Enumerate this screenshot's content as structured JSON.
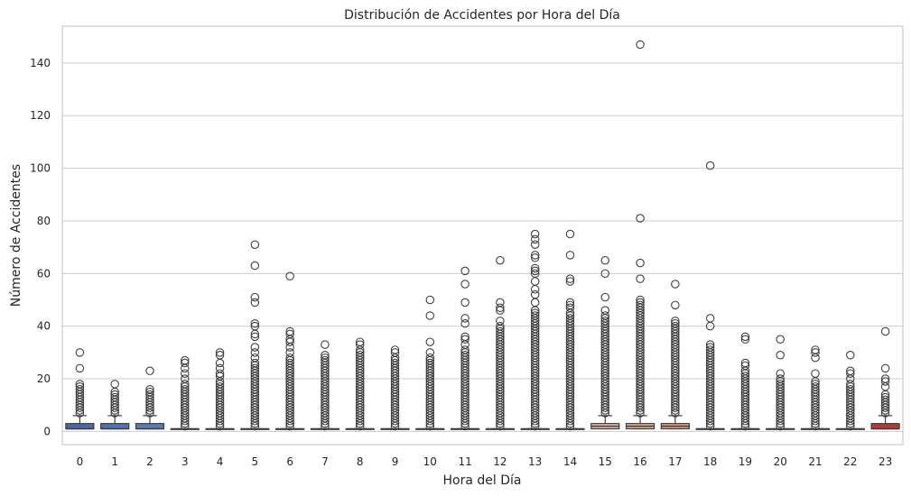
{
  "chart_data": {
    "type": "box",
    "title": "Distribución de Accidentes por Hora del Día",
    "xlabel": "Hora del Día",
    "ylabel": "Número de Accidentes",
    "ylim": [
      -5,
      154
    ],
    "yticks": [
      0,
      20,
      40,
      60,
      80,
      100,
      120,
      140
    ],
    "grid": "horizontal",
    "categories": [
      "0",
      "1",
      "2",
      "3",
      "4",
      "5",
      "6",
      "7",
      "8",
      "9",
      "10",
      "11",
      "12",
      "13",
      "14",
      "15",
      "16",
      "17",
      "18",
      "19",
      "20",
      "21",
      "22",
      "23"
    ],
    "boxes": [
      {
        "q1": 1,
        "median": 1,
        "q3": 3,
        "whisker_low": 1,
        "whisker_high": 6,
        "color": "#4a69a8"
      },
      {
        "q1": 1,
        "median": 1,
        "q3": 3,
        "whisker_low": 1,
        "whisker_high": 6,
        "color": "#5173ae"
      },
      {
        "q1": 1,
        "median": 1,
        "q3": 3,
        "whisker_low": 1,
        "whisker_high": 6,
        "color": "#5b7db5"
      },
      {
        "q1": 1,
        "median": 1,
        "q3": 1,
        "whisker_low": 1,
        "whisker_high": 1,
        "color": "#6788bb"
      },
      {
        "q1": 1,
        "median": 1,
        "q3": 1,
        "whisker_low": 1,
        "whisker_high": 1,
        "color": "#7593c2"
      },
      {
        "q1": 1,
        "median": 1,
        "q3": 1,
        "whisker_low": 1,
        "whisker_high": 1,
        "color": "#839ec8"
      },
      {
        "q1": 1,
        "median": 1,
        "q3": 1,
        "whisker_low": 1,
        "whisker_high": 1,
        "color": "#92aacd"
      },
      {
        "q1": 1,
        "median": 1,
        "q3": 1,
        "whisker_low": 1,
        "whisker_high": 1,
        "color": "#a2b5d2"
      },
      {
        "q1": 1,
        "median": 1,
        "q3": 1,
        "whisker_low": 1,
        "whisker_high": 1,
        "color": "#b1c0d6"
      },
      {
        "q1": 1,
        "median": 1,
        "q3": 1,
        "whisker_low": 1,
        "whisker_high": 1,
        "color": "#c0cbd9"
      },
      {
        "q1": 1,
        "median": 1,
        "q3": 1,
        "whisker_low": 1,
        "whisker_high": 1,
        "color": "#ced5dc"
      },
      {
        "q1": 1,
        "median": 1,
        "q3": 1,
        "whisker_low": 1,
        "whisker_high": 1,
        "color": "#dbdcdd"
      },
      {
        "q1": 1,
        "median": 1,
        "q3": 1,
        "whisker_low": 1,
        "whisker_high": 1,
        "color": "#e2d9d4"
      },
      {
        "q1": 1,
        "median": 1,
        "q3": 1,
        "whisker_low": 1,
        "whisker_high": 1,
        "color": "#e6d1c7"
      },
      {
        "q1": 1,
        "median": 1,
        "q3": 1,
        "whisker_low": 1,
        "whisker_high": 1,
        "color": "#e8c8b8"
      },
      {
        "q1": 1,
        "median": 2,
        "q3": 3,
        "whisker_low": 1,
        "whisker_high": 6,
        "color": "#e9bea9"
      },
      {
        "q1": 1,
        "median": 2,
        "q3": 3,
        "whisker_low": 1,
        "whisker_high": 6,
        "color": "#e6b199"
      },
      {
        "q1": 1,
        "median": 2,
        "q3": 3,
        "whisker_low": 1,
        "whisker_high": 6,
        "color": "#e2a287"
      },
      {
        "q1": 1,
        "median": 1,
        "q3": 1,
        "whisker_low": 1,
        "whisker_high": 1,
        "color": "#dd9276"
      },
      {
        "q1": 1,
        "median": 1,
        "q3": 1,
        "whisker_low": 1,
        "whisker_high": 1,
        "color": "#d68265"
      },
      {
        "q1": 1,
        "median": 1,
        "q3": 1,
        "whisker_low": 1,
        "whisker_high": 1,
        "color": "#ce7156"
      },
      {
        "q1": 1,
        "median": 1,
        "q3": 1,
        "whisker_low": 1,
        "whisker_high": 1,
        "color": "#c35f48"
      },
      {
        "q1": 1,
        "median": 1,
        "q3": 1,
        "whisker_low": 1,
        "whisker_high": 1,
        "color": "#b84d3c"
      },
      {
        "q1": 1,
        "median": 1,
        "q3": 3,
        "whisker_low": 1,
        "whisker_high": 6,
        "color": "#b13c35"
      }
    ],
    "outliers": [
      [
        30,
        24,
        18,
        17,
        16,
        15,
        14,
        13,
        12,
        11,
        10,
        9,
        8,
        7
      ],
      [
        18,
        15,
        14,
        13,
        12,
        11,
        10,
        9,
        8,
        7
      ],
      [
        23,
        16,
        15,
        14,
        13,
        12,
        11,
        10,
        9,
        8,
        7
      ],
      [
        27,
        26,
        24,
        22,
        20,
        18,
        17,
        16,
        15,
        14,
        13,
        12,
        11,
        10,
        9,
        8,
        7,
        6,
        5,
        4,
        3,
        2
      ],
      [
        30,
        29,
        26,
        24,
        22,
        21,
        19,
        18,
        17,
        16,
        15,
        14,
        13,
        12,
        11,
        10,
        9,
        8,
        7,
        6,
        5,
        4,
        3,
        2
      ],
      [
        71,
        63,
        51,
        49,
        41,
        40,
        37,
        36,
        32,
        30,
        28,
        26,
        25,
        24,
        23,
        22,
        21,
        20,
        19,
        18,
        17,
        16,
        15,
        14,
        13,
        12,
        11,
        10,
        9,
        8,
        7,
        6,
        5,
        4,
        3,
        2
      ],
      [
        59,
        38,
        37,
        35,
        34,
        32,
        30,
        28,
        27,
        26,
        25,
        24,
        23,
        22,
        21,
        20,
        19,
        18,
        17,
        16,
        15,
        14,
        13,
        12,
        11,
        10,
        9,
        8,
        7,
        6,
        5,
        4,
        3,
        2
      ],
      [
        33,
        29,
        28,
        27,
        26,
        25,
        24,
        23,
        22,
        21,
        20,
        19,
        18,
        17,
        16,
        15,
        14,
        13,
        12,
        11,
        10,
        9,
        8,
        7,
        6,
        5,
        4,
        3,
        2
      ],
      [
        34,
        33,
        31,
        30,
        29,
        28,
        27,
        26,
        25,
        24,
        23,
        22,
        21,
        20,
        19,
        18,
        17,
        16,
        15,
        14,
        13,
        12,
        11,
        10,
        9,
        8,
        7,
        6,
        5,
        4,
        3,
        2
      ],
      [
        31,
        30,
        28,
        27,
        26,
        25,
        24,
        23,
        22,
        21,
        20,
        19,
        18,
        17,
        16,
        15,
        14,
        13,
        12,
        11,
        10,
        9,
        8,
        7,
        6,
        5,
        4,
        3,
        2
      ],
      [
        50,
        44,
        34,
        30,
        28,
        27,
        26,
        25,
        24,
        23,
        22,
        21,
        20,
        19,
        18,
        17,
        16,
        15,
        14,
        13,
        12,
        11,
        10,
        9,
        8,
        7,
        6,
        5,
        4,
        3,
        2
      ],
      [
        61,
        56,
        49,
        43,
        41,
        36,
        35,
        33,
        31,
        30,
        29,
        28,
        27,
        26,
        25,
        24,
        23,
        22,
        21,
        20,
        19,
        18,
        17,
        16,
        15,
        14,
        13,
        12,
        11,
        10,
        9,
        8,
        7,
        6,
        5,
        4,
        3,
        2
      ],
      [
        65,
        49,
        47,
        46,
        42,
        40,
        39,
        38,
        37,
        36,
        35,
        34,
        33,
        32,
        31,
        30,
        29,
        28,
        27,
        26,
        25,
        24,
        23,
        22,
        21,
        20,
        19,
        18,
        17,
        16,
        15,
        14,
        13,
        12,
        11,
        10,
        9,
        8,
        7,
        6,
        5,
        4,
        3,
        2
      ],
      [
        75,
        73,
        71,
        67,
        66,
        62,
        61,
        60,
        57,
        54,
        52,
        49,
        46,
        45,
        44,
        43,
        42,
        41,
        40,
        39,
        38,
        37,
        36,
        35,
        34,
        33,
        32,
        31,
        30,
        29,
        28,
        27,
        26,
        25,
        24,
        23,
        22,
        21,
        20,
        19,
        18,
        17,
        16,
        15,
        14,
        13,
        12,
        11,
        10,
        9,
        8,
        7,
        6,
        5,
        4,
        3,
        2
      ],
      [
        75,
        67,
        58,
        57,
        49,
        48,
        47,
        45,
        44,
        43,
        42,
        41,
        40,
        39,
        38,
        37,
        36,
        35,
        34,
        33,
        32,
        31,
        30,
        29,
        28,
        27,
        26,
        25,
        24,
        23,
        22,
        21,
        20,
        19,
        18,
        17,
        16,
        15,
        14,
        13,
        12,
        11,
        10,
        9,
        8,
        7,
        6,
        5,
        4,
        3,
        2
      ],
      [
        65,
        60,
        51,
        46,
        44,
        43,
        42,
        41,
        40,
        39,
        38,
        37,
        36,
        35,
        34,
        33,
        32,
        31,
        30,
        29,
        28,
        27,
        26,
        25,
        24,
        23,
        22,
        21,
        20,
        19,
        18,
        17,
        16,
        15,
        14,
        13,
        12,
        11,
        10,
        9,
        8,
        7
      ],
      [
        147,
        81,
        64,
        58,
        50,
        49,
        48,
        47,
        46,
        45,
        44,
        43,
        42,
        41,
        40,
        39,
        38,
        37,
        36,
        35,
        34,
        33,
        32,
        31,
        30,
        29,
        28,
        27,
        26,
        25,
        24,
        23,
        22,
        21,
        20,
        19,
        18,
        17,
        16,
        15,
        14,
        13,
        12,
        11,
        10,
        9,
        8,
        7
      ],
      [
        56,
        48,
        42,
        41,
        40,
        39,
        38,
        37,
        36,
        35,
        34,
        33,
        32,
        31,
        30,
        29,
        28,
        27,
        26,
        25,
        24,
        23,
        22,
        21,
        20,
        19,
        18,
        17,
        16,
        15,
        14,
        13,
        12,
        11,
        10,
        9,
        8,
        7
      ],
      [
        101,
        43,
        40,
        33,
        32,
        31,
        30,
        29,
        28,
        27,
        26,
        25,
        24,
        23,
        22,
        21,
        20,
        19,
        18,
        17,
        16,
        15,
        14,
        13,
        12,
        11,
        10,
        9,
        8,
        7,
        6,
        5,
        4,
        3,
        2
      ],
      [
        36,
        35,
        26,
        25,
        23,
        22,
        21,
        20,
        19,
        18,
        17,
        16,
        15,
        14,
        13,
        12,
        11,
        10,
        9,
        8,
        7,
        6,
        5,
        4,
        3,
        2
      ],
      [
        35,
        29,
        22,
        20,
        19,
        18,
        17,
        16,
        15,
        14,
        13,
        12,
        11,
        10,
        9,
        8,
        7,
        6,
        5,
        4,
        3,
        2
      ],
      [
        31,
        30,
        28,
        22,
        19,
        18,
        17,
        16,
        15,
        14,
        13,
        12,
        11,
        10,
        9,
        8,
        7,
        6,
        5,
        4,
        3,
        2
      ],
      [
        29,
        23,
        22,
        20,
        18,
        17,
        16,
        15,
        14,
        13,
        12,
        11,
        10,
        9,
        8,
        7,
        6,
        5,
        4,
        3,
        2
      ],
      [
        38,
        24,
        20,
        19,
        17,
        14,
        13,
        12,
        11,
        10,
        9,
        8,
        7
      ]
    ]
  }
}
